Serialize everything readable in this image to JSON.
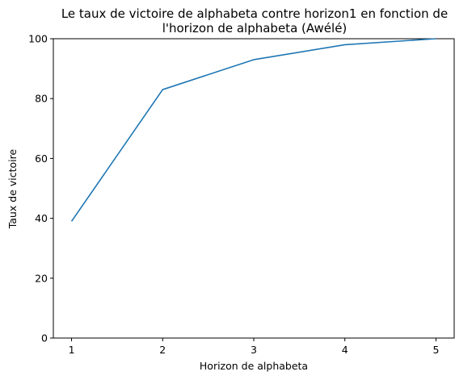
{
  "chart_data": {
    "type": "line",
    "title_lines": [
      "Le taux de victoire de alphabeta contre horizon1 en fonction de",
      "l'horizon de alphabeta (Awélé)"
    ],
    "xlabel": "Horizon de alphabeta",
    "ylabel": "Taux de victoire",
    "x": [
      1,
      2,
      3,
      4,
      5
    ],
    "series": [
      {
        "values": [
          39,
          83,
          93,
          98,
          100
        ],
        "color": "#1f77b4"
      }
    ],
    "xticks": [
      "1",
      "2",
      "3",
      "4",
      "5"
    ],
    "yticks": [
      "0",
      "20",
      "40",
      "60",
      "80",
      "100"
    ],
    "xlim": [
      0.8,
      5.2
    ],
    "ylim": [
      0,
      100
    ],
    "grid": false
  }
}
